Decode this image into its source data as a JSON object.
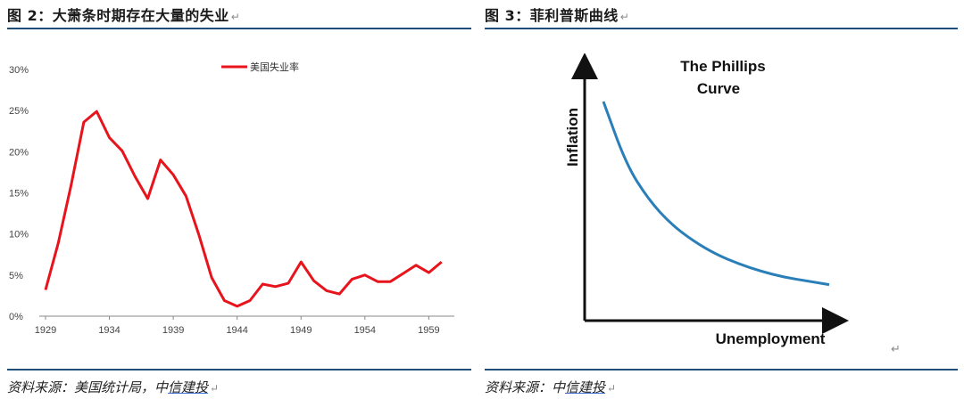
{
  "fig2": {
    "title": "图 2：大萧条时期存在大量的失业",
    "source_prefix": "资料来源：美国统计局，中",
    "source_link": "信建投"
  },
  "fig3": {
    "title": "图 3：菲利普斯曲线",
    "source_prefix": "资料来源：中",
    "source_link": "信建投"
  },
  "return_mark": "↵",
  "colors": {
    "series": "#e8141c",
    "curve": "#2a7fb8",
    "rule": "#1f4e79",
    "axis": "#888888"
  },
  "chart_data": [
    {
      "type": "line",
      "title": "",
      "xlabel": "",
      "ylabel": "",
      "xlim": [
        1929,
        1961
      ],
      "ylim": [
        0,
        0.3
      ],
      "x_ticks": [
        1929,
        1934,
        1939,
        1944,
        1949,
        1954,
        1959
      ],
      "y_ticks": [
        "0%",
        "5%",
        "10%",
        "15%",
        "20%",
        "25%",
        "30%"
      ],
      "y_tick_values": [
        0,
        0.05,
        0.1,
        0.15,
        0.2,
        0.25,
        0.3
      ],
      "legend_position": "top",
      "grid": false,
      "series": [
        {
          "name": "美国失业率",
          "x": [
            1929,
            1930,
            1931,
            1932,
            1933,
            1934,
            1935,
            1936,
            1937,
            1938,
            1939,
            1940,
            1941,
            1942,
            1943,
            1944,
            1945,
            1946,
            1947,
            1948,
            1949,
            1950,
            1951,
            1952,
            1953,
            1954,
            1955,
            1956,
            1957,
            1958,
            1959,
            1960
          ],
          "values": [
            0.032,
            0.089,
            0.159,
            0.236,
            0.249,
            0.217,
            0.201,
            0.17,
            0.143,
            0.19,
            0.172,
            0.146,
            0.099,
            0.047,
            0.019,
            0.012,
            0.019,
            0.039,
            0.036,
            0.04,
            0.066,
            0.043,
            0.031,
            0.027,
            0.045,
            0.05,
            0.042,
            0.042,
            0.052,
            0.062,
            0.053,
            0.066
          ]
        }
      ]
    },
    {
      "type": "line",
      "title": "The Phillips Curve",
      "title_lines": [
        "The Phillips",
        "Curve"
      ],
      "xlabel": "Unemployment",
      "ylabel": "Inflation",
      "grid": false,
      "series": [
        {
          "name": "",
          "x": [
            0,
            1,
            2,
            3,
            4,
            5,
            6,
            7,
            8,
            9,
            10
          ],
          "values": [
            100,
            67,
            48,
            35,
            26,
            19,
            14,
            10,
            7,
            5,
            3
          ]
        }
      ]
    }
  ]
}
